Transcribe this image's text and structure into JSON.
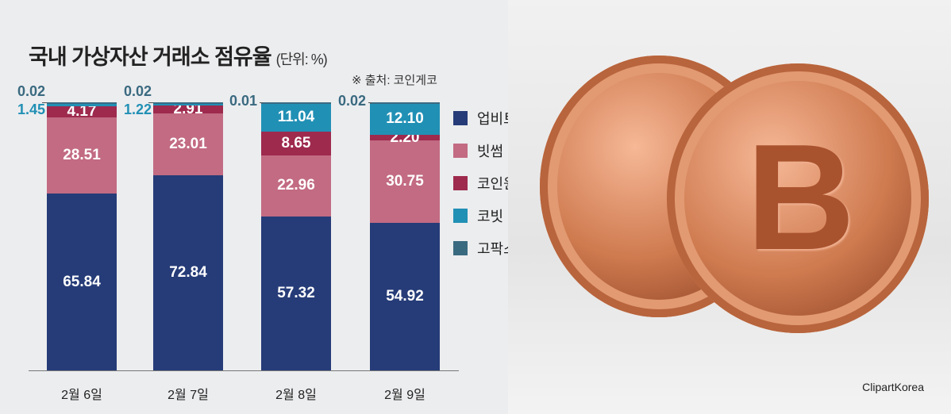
{
  "title": "국내 가상자산 거래소 점유율",
  "unit": "(단위: %)",
  "source": "※ 출처: 코인게코",
  "credit": "ClipartKorea",
  "chart_data": {
    "type": "bar",
    "stacked": true,
    "categories": [
      "2월 6일",
      "2월 7일",
      "2월 8일",
      "2월 9일"
    ],
    "series": [
      {
        "name": "업비트",
        "color": "#263c78",
        "values": [
          65.84,
          72.84,
          57.32,
          54.92
        ]
      },
      {
        "name": "빗썸",
        "color": "#c26b82",
        "values": [
          28.51,
          23.01,
          22.96,
          30.75
        ]
      },
      {
        "name": "코인원",
        "color": "#9e2a4e",
        "values": [
          4.17,
          2.91,
          8.65,
          2.2
        ]
      },
      {
        "name": "코빗",
        "color": "#2190b5",
        "values": [
          1.45,
          1.22,
          11.04,
          12.1
        ]
      },
      {
        "name": "고팍스",
        "color": "#3a6a80",
        "values": [
          0.02,
          0.02,
          0.01,
          0.02
        ]
      }
    ],
    "ylim": [
      0,
      100
    ],
    "legend": "right"
  }
}
